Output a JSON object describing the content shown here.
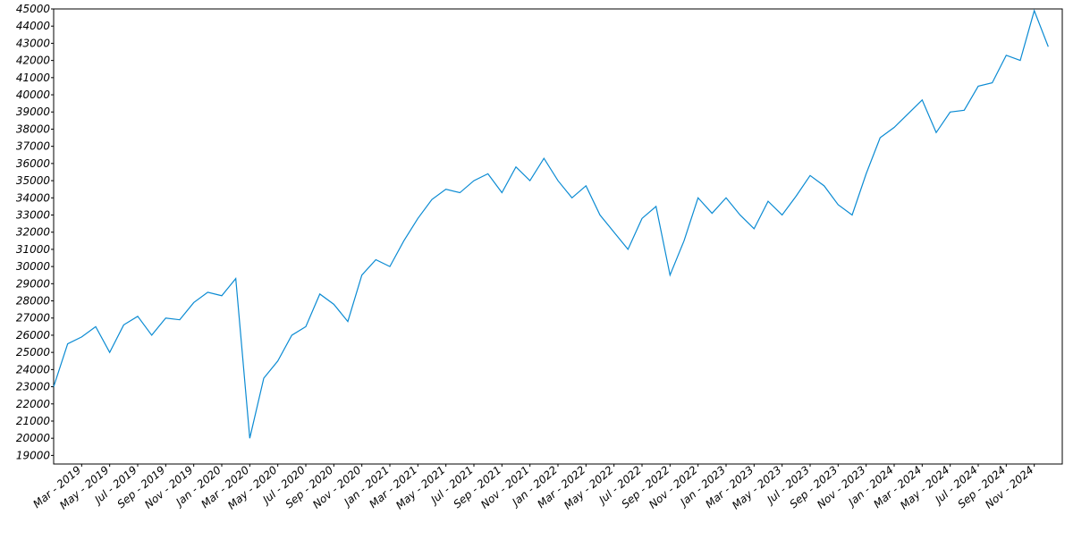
{
  "chart_data": {
    "type": "line",
    "color": "#0b8bd3",
    "x": [
      "2019-01",
      "2019-02",
      "2019-03",
      "2019-04",
      "2019-05",
      "2019-06",
      "2019-07",
      "2019-08",
      "2019-09",
      "2019-10",
      "2019-11",
      "2019-12",
      "2020-01",
      "2020-02",
      "2020-03",
      "2020-04",
      "2020-05",
      "2020-06",
      "2020-07",
      "2020-08",
      "2020-09",
      "2020-10",
      "2020-11",
      "2020-12",
      "2021-01",
      "2021-02",
      "2021-03",
      "2021-04",
      "2021-05",
      "2021-06",
      "2021-07",
      "2021-08",
      "2021-09",
      "2021-10",
      "2021-11",
      "2021-12",
      "2022-01",
      "2022-02",
      "2022-03",
      "2022-04",
      "2022-05",
      "2022-06",
      "2022-07",
      "2022-08",
      "2022-09",
      "2022-10",
      "2022-11",
      "2022-12",
      "2023-01",
      "2023-02",
      "2023-03",
      "2023-04",
      "2023-05",
      "2023-06",
      "2023-07",
      "2023-08",
      "2023-09",
      "2023-10",
      "2023-11",
      "2023-12",
      "2024-01",
      "2024-02",
      "2024-03",
      "2024-04",
      "2024-05",
      "2024-06",
      "2024-07",
      "2024-08",
      "2024-09",
      "2024-10",
      "2024-11",
      "2024-12"
    ],
    "values": [
      23000,
      25500,
      25900,
      26500,
      25000,
      26600,
      27100,
      26000,
      27000,
      26900,
      27900,
      28500,
      28300,
      29300,
      20000,
      23500,
      24500,
      26000,
      26500,
      28400,
      27800,
      26800,
      29500,
      30400,
      30000,
      31500,
      32800,
      33900,
      34500,
      34300,
      35000,
      35400,
      34300,
      35800,
      35000,
      36300,
      35000,
      34000,
      34700,
      33000,
      32000,
      31000,
      32800,
      33500,
      29500,
      31500,
      34000,
      33100,
      34000,
      33000,
      32200,
      33800,
      33000,
      34100,
      35300,
      34700,
      33600,
      33000,
      35400,
      37500,
      38100,
      38900,
      39700,
      37800,
      39000,
      39100,
      40500,
      40700,
      42300,
      42000,
      44900,
      42800
    ],
    "xlim": [
      "2019-01",
      "2025-01"
    ],
    "xticks": [
      {
        "value": "2019-03",
        "label": "Mar - 2019"
      },
      {
        "value": "2019-05",
        "label": "May - 2019"
      },
      {
        "value": "2019-07",
        "label": "Jul - 2019"
      },
      {
        "value": "2019-09",
        "label": "Sep - 2019"
      },
      {
        "value": "2019-11",
        "label": "Nov - 2019"
      },
      {
        "value": "2020-01",
        "label": "Jan - 2020"
      },
      {
        "value": "2020-03",
        "label": "Mar - 2020"
      },
      {
        "value": "2020-05",
        "label": "May - 2020"
      },
      {
        "value": "2020-07",
        "label": "Jul - 2020"
      },
      {
        "value": "2020-09",
        "label": "Sep - 2020"
      },
      {
        "value": "2020-11",
        "label": "Nov - 2020"
      },
      {
        "value": "2021-01",
        "label": "Jan - 2021"
      },
      {
        "value": "2021-03",
        "label": "Mar - 2021"
      },
      {
        "value": "2021-05",
        "label": "May - 2021"
      },
      {
        "value": "2021-07",
        "label": "Jul - 2021"
      },
      {
        "value": "2021-09",
        "label": "Sep - 2021"
      },
      {
        "value": "2021-11",
        "label": "Nov - 2021"
      },
      {
        "value": "2022-01",
        "label": "Jan - 2022"
      },
      {
        "value": "2022-03",
        "label": "Mar - 2022"
      },
      {
        "value": "2022-05",
        "label": "May - 2022"
      },
      {
        "value": "2022-07",
        "label": "Jul - 2022"
      },
      {
        "value": "2022-09",
        "label": "Sep - 2022"
      },
      {
        "value": "2022-11",
        "label": "Nov - 2022"
      },
      {
        "value": "2023-01",
        "label": "Jan - 2023"
      },
      {
        "value": "2023-03",
        "label": "Mar - 2023"
      },
      {
        "value": "2023-05",
        "label": "May - 2023"
      },
      {
        "value": "2023-07",
        "label": "Jul - 2023"
      },
      {
        "value": "2023-09",
        "label": "Sep - 2023"
      },
      {
        "value": "2023-11",
        "label": "Nov - 2023"
      },
      {
        "value": "2024-01",
        "label": "Jan - 2024"
      },
      {
        "value": "2024-03",
        "label": "Mar - 2024"
      },
      {
        "value": "2024-05",
        "label": "May - 2024"
      },
      {
        "value": "2024-07",
        "label": "Jul - 2024"
      },
      {
        "value": "2024-09",
        "label": "Sep - 2024"
      },
      {
        "value": "2024-11",
        "label": "Nov - 2024"
      }
    ],
    "ylim": [
      18500,
      45000
    ],
    "yticks": [
      19000,
      20000,
      21000,
      22000,
      23000,
      24000,
      25000,
      26000,
      27000,
      28000,
      29000,
      30000,
      31000,
      32000,
      33000,
      34000,
      35000,
      36000,
      37000,
      38000,
      39000,
      40000,
      41000,
      42000,
      43000,
      44000,
      45000
    ]
  }
}
